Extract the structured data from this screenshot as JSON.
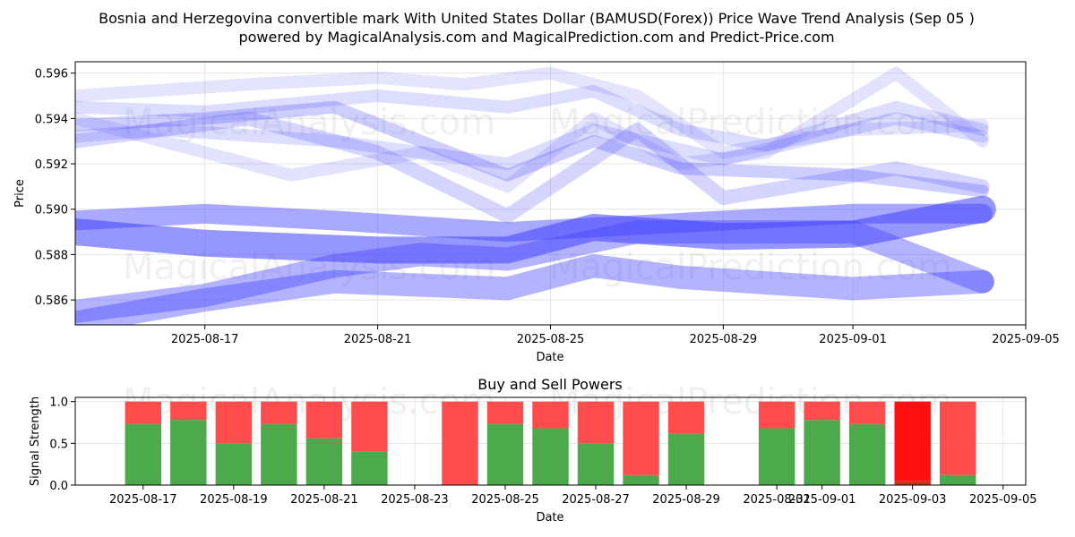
{
  "title_line1": "Bosnia and Herzegovina convertible mark With United States Dollar (BAMUSD(Forex)) Price Wave Trend Analysis (Sep 05 )",
  "title_line2": "powered by MagicalAnalysis.com and MagicalPrediction.com and Predict-Price.com",
  "watermarks": [
    "MagicalAnalysis.com",
    "MagicalPrediction.com"
  ],
  "chart_data": [
    {
      "type": "line",
      "name": "price-wave-chart",
      "xlabel": "Date",
      "ylabel": "Price",
      "xlim": [
        "2025-08-14",
        "2025-09-05"
      ],
      "ylim": [
        0.5849,
        0.5965
      ],
      "x_ticks": [
        "2025-08-17",
        "2025-08-21",
        "2025-08-25",
        "2025-08-29",
        "2025-09-01",
        "2025-09-05"
      ],
      "y_ticks": [
        0.586,
        0.588,
        0.59,
        0.592,
        0.594,
        0.596
      ],
      "grid": true,
      "colors": {
        "band": "#4040ff"
      },
      "series": [
        {
          "x": [
            "2025-08-14",
            "2025-08-17",
            "2025-08-21",
            "2025-08-24",
            "2025-08-26",
            "2025-08-29",
            "2025-09-01",
            "2025-09-04"
          ],
          "values": [
            0.589,
            0.5885,
            0.5882,
            0.5882,
            0.5892,
            0.5888,
            0.5889,
            0.59
          ],
          "width": 30,
          "alpha": 0.55
        },
        {
          "x": [
            "2025-08-14",
            "2025-08-17",
            "2025-08-20",
            "2025-08-24",
            "2025-08-27",
            "2025-09-01",
            "2025-09-04"
          ],
          "values": [
            0.5895,
            0.5898,
            0.5895,
            0.589,
            0.5893,
            0.5898,
            0.5898
          ],
          "width": 22,
          "alpha": 0.45
        },
        {
          "x": [
            "2025-08-14",
            "2025-08-17",
            "2025-08-20",
            "2025-08-22",
            "2025-08-24",
            "2025-08-27",
            "2025-09-01",
            "2025-09-04"
          ],
          "values": [
            0.5855,
            0.5862,
            0.5875,
            0.588,
            0.5878,
            0.589,
            0.589,
            0.5868
          ],
          "width": 26,
          "alpha": 0.4
        },
        {
          "x": [
            "2025-08-14",
            "2025-08-17",
            "2025-08-20",
            "2025-08-24",
            "2025-08-26",
            "2025-08-28",
            "2025-09-01",
            "2025-09-04"
          ],
          "values": [
            0.585,
            0.586,
            0.5868,
            0.5865,
            0.5875,
            0.587,
            0.5865,
            0.5868
          ],
          "width": 26,
          "alpha": 0.4
        },
        {
          "x": [
            "2025-08-14",
            "2025-08-17",
            "2025-08-20",
            "2025-08-22",
            "2025-08-24",
            "2025-08-26",
            "2025-08-28",
            "2025-09-01",
            "2025-09-04"
          ],
          "values": [
            0.5937,
            0.594,
            0.5945,
            0.593,
            0.5915,
            0.593,
            0.5918,
            0.5915,
            0.5908
          ],
          "width": 14,
          "alpha": 0.25
        },
        {
          "x": [
            "2025-08-14",
            "2025-08-18",
            "2025-08-21",
            "2025-08-24",
            "2025-08-27",
            "2025-08-29",
            "2025-09-02",
            "2025-09-04"
          ],
          "values": [
            0.593,
            0.594,
            0.5925,
            0.5897,
            0.5935,
            0.5905,
            0.5918,
            0.591
          ],
          "width": 16,
          "alpha": 0.22
        },
        {
          "x": [
            "2025-08-14",
            "2025-08-17",
            "2025-08-21",
            "2025-08-24",
            "2025-08-26",
            "2025-08-28",
            "2025-08-30",
            "2025-09-02",
            "2025-09-04"
          ],
          "values": [
            0.5945,
            0.5943,
            0.595,
            0.5945,
            0.5952,
            0.5935,
            0.5928,
            0.5945,
            0.5935
          ],
          "width": 14,
          "alpha": 0.18
        },
        {
          "x": [
            "2025-08-14",
            "2025-08-17",
            "2025-08-19",
            "2025-08-22",
            "2025-08-24",
            "2025-08-26",
            "2025-08-28",
            "2025-08-30",
            "2025-09-02",
            "2025-09-04"
          ],
          "values": [
            0.594,
            0.5925,
            0.5915,
            0.5925,
            0.591,
            0.594,
            0.592,
            0.5925,
            0.596,
            0.593
          ],
          "width": 14,
          "alpha": 0.15
        },
        {
          "x": [
            "2025-08-14",
            "2025-08-16",
            "2025-08-20",
            "2025-08-22",
            "2025-08-24",
            "2025-08-26",
            "2025-08-29",
            "2025-09-02",
            "2025-09-04"
          ],
          "values": [
            0.5932,
            0.5935,
            0.593,
            0.5925,
            0.592,
            0.5935,
            0.5922,
            0.594,
            0.5932
          ],
          "width": 14,
          "alpha": 0.18
        },
        {
          "x": [
            "2025-08-14",
            "2025-08-18",
            "2025-08-21",
            "2025-08-23",
            "2025-08-25",
            "2025-08-27",
            "2025-08-29",
            "2025-09-01",
            "2025-09-04"
          ],
          "values": [
            0.595,
            0.5955,
            0.5958,
            0.5955,
            0.596,
            0.595,
            0.5925,
            0.5935,
            0.5937
          ],
          "width": 14,
          "alpha": 0.14
        }
      ]
    },
    {
      "type": "bar",
      "name": "buy-sell-powers-chart",
      "title": "Buy and Sell Powers",
      "xlabel": "Date",
      "ylabel": "Signal Strength",
      "xlim": [
        "2025-08-15T12",
        "2025-09-05T12"
      ],
      "ylim": [
        0,
        1.05
      ],
      "x_ticks": [
        "2025-08-17",
        "2025-08-19",
        "2025-08-21",
        "2025-08-23",
        "2025-08-25",
        "2025-08-27",
        "2025-08-29",
        "2025-08-31",
        "2025-09-01",
        "2025-09-03",
        "2025-09-05"
      ],
      "y_ticks": [
        0.0,
        0.5,
        1.0
      ],
      "grid": true,
      "colors": {
        "buy": "#4caa4c",
        "sell": "#ff4d4d",
        "sell_strong": "#ff1010",
        "buy_dark": "#c83219"
      },
      "categories": [
        "2025-08-17",
        "2025-08-18",
        "2025-08-19",
        "2025-08-20",
        "2025-08-21",
        "2025-08-22",
        "2025-08-24",
        "2025-08-25",
        "2025-08-26",
        "2025-08-27",
        "2025-08-28",
        "2025-08-29",
        "2025-08-31",
        "2025-09-01",
        "2025-09-02",
        "2025-09-03",
        "2025-09-04"
      ],
      "series": [
        {
          "values": [
            0.73,
            0.78,
            0.5,
            0.73,
            0.56,
            0.4,
            0.0,
            0.73,
            0.68,
            0.5,
            0.12,
            0.62,
            0.68,
            0.78,
            0.73,
            0.05,
            0.12
          ]
        },
        {
          "values": [
            0.27,
            0.22,
            0.5,
            0.27,
            0.44,
            0.6,
            1.0,
            0.27,
            0.32,
            0.5,
            0.88,
            0.38,
            0.32,
            0.22,
            0.27,
            0.95,
            0.88
          ]
        }
      ]
    }
  ]
}
